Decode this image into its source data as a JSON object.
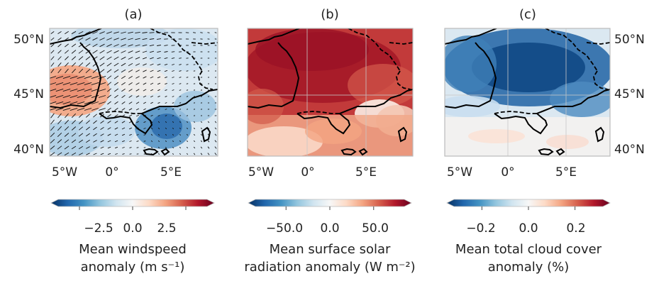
{
  "chart_data": [
    {
      "type": "heatmap",
      "panel_label": "(a)",
      "x_ticks": [
        "5°W",
        "0°",
        "5°E"
      ],
      "y_ticks": [
        "50°N",
        "45°N",
        "40°N"
      ],
      "y_ticks_side": "left",
      "overlay": "wind vectors",
      "colormap": "RdBu_r",
      "colorbar": {
        "ticks": [
          "−2.5",
          "0.0",
          "2.5"
        ],
        "range": [
          -3.5,
          3.5
        ],
        "label_line1": "Mean windspeed",
        "label_line2": "anomaly (m s⁻¹)"
      }
    },
    {
      "type": "heatmap",
      "panel_label": "(b)",
      "x_ticks": [
        "5°W",
        "0°",
        "5°E"
      ],
      "y_ticks": [],
      "colormap": "RdBu_r",
      "colorbar": {
        "ticks": [
          "−50.0",
          "0.0",
          "50.0"
        ],
        "range": [
          -85,
          85
        ],
        "label_line1": "Mean surface solar",
        "label_line2": "radiation  anomaly (W m⁻²)"
      }
    },
    {
      "type": "heatmap",
      "panel_label": "(c)",
      "x_ticks": [
        "5°W",
        "0°",
        "5°E"
      ],
      "y_ticks": [
        "50°N",
        "45°N",
        "40°N"
      ],
      "y_ticks_side": "right",
      "colormap": "RdBu_r",
      "colorbar": {
        "ticks": [
          "−0.2",
          "0.0",
          "0.2"
        ],
        "range": [
          -0.32,
          0.32
        ],
        "label_line1": "Mean total cloud cover",
        "label_line2": "anomaly (%)"
      }
    }
  ],
  "colors": {
    "blue_dark": "#053061",
    "blue": "#2166ac",
    "blue_mid": "#4393c3",
    "blue_light": "#92c5de",
    "blue_pale": "#d1e5f0",
    "neutral": "#f7f7f7",
    "red_pale": "#fddbc7",
    "red_light": "#f4a582",
    "red_mid": "#d6604d",
    "red": "#b2182b",
    "red_dark": "#67001f"
  }
}
